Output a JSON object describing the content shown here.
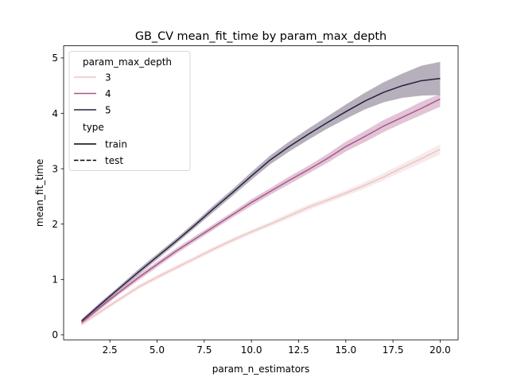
{
  "chart_data": {
    "type": "line",
    "title": "GB_CV mean_fit_time by param_max_depth",
    "xlabel": "param_n_estimators",
    "ylabel": "mean_fit_time",
    "xlim": [
      0.05,
      20.95
    ],
    "ylim": [
      -0.09,
      5.22
    ],
    "xticks": [
      2.5,
      5.0,
      7.5,
      10.0,
      12.5,
      15.0,
      17.5,
      20.0
    ],
    "xtick_labels": [
      "2.5",
      "5.0",
      "7.5",
      "10.0",
      "12.5",
      "15.0",
      "17.5",
      "20.0"
    ],
    "yticks": [
      0,
      1,
      2,
      3,
      4,
      5
    ],
    "ytick_labels": [
      "0",
      "1",
      "2",
      "3",
      "4",
      "5"
    ],
    "grid": false,
    "legend": {
      "placement": "top-left",
      "hue_title": "param_max_depth",
      "style_title": "type",
      "style_entries": [
        {
          "label": "train",
          "dash": "solid"
        },
        {
          "label": "test",
          "dash": "dashed"
        }
      ]
    },
    "x": [
      1,
      2,
      3,
      4,
      5,
      6,
      7,
      8,
      9,
      10,
      11,
      12,
      13,
      14,
      15,
      16,
      17,
      18,
      19,
      20
    ],
    "series": [
      {
        "name": "3",
        "color": "#ebc4c4",
        "values": [
          0.19,
          0.42,
          0.64,
          0.86,
          1.04,
          1.21,
          1.38,
          1.55,
          1.71,
          1.86,
          2.0,
          2.15,
          2.3,
          2.43,
          2.56,
          2.7,
          2.85,
          3.02,
          3.18,
          3.35
        ],
        "ci_lower": [
          0.16,
          0.38,
          0.6,
          0.82,
          1.0,
          1.17,
          1.34,
          1.51,
          1.67,
          1.82,
          1.96,
          2.1,
          2.25,
          2.38,
          2.51,
          2.64,
          2.79,
          2.95,
          3.1,
          3.26
        ],
        "ci_upper": [
          0.22,
          0.46,
          0.68,
          0.9,
          1.08,
          1.25,
          1.42,
          1.59,
          1.75,
          1.9,
          2.04,
          2.2,
          2.35,
          2.48,
          2.61,
          2.76,
          2.92,
          3.09,
          3.26,
          3.44
        ]
      },
      {
        "name": "4",
        "color": "#a8578a",
        "values": [
          0.22,
          0.5,
          0.77,
          1.03,
          1.27,
          1.51,
          1.73,
          1.95,
          2.17,
          2.39,
          2.59,
          2.79,
          2.98,
          3.18,
          3.4,
          3.58,
          3.77,
          3.93,
          4.09,
          4.26
        ],
        "ci_lower": [
          0.19,
          0.46,
          0.73,
          0.98,
          1.22,
          1.46,
          1.68,
          1.9,
          2.12,
          2.33,
          2.53,
          2.72,
          2.91,
          3.1,
          3.31,
          3.48,
          3.66,
          3.82,
          3.97,
          4.12
        ],
        "ci_upper": [
          0.25,
          0.54,
          0.81,
          1.08,
          1.32,
          1.56,
          1.78,
          2.0,
          2.22,
          2.45,
          2.65,
          2.86,
          3.05,
          3.26,
          3.49,
          3.68,
          3.88,
          4.04,
          4.21,
          4.35
        ]
      },
      {
        "name": "5",
        "color": "#2d1e3e",
        "values": [
          0.25,
          0.55,
          0.84,
          1.13,
          1.41,
          1.69,
          1.98,
          2.28,
          2.57,
          2.87,
          3.16,
          3.4,
          3.62,
          3.83,
          4.03,
          4.22,
          4.38,
          4.5,
          4.59,
          4.63
        ],
        "ci_lower": [
          0.22,
          0.51,
          0.8,
          1.08,
          1.36,
          1.64,
          1.93,
          2.22,
          2.51,
          2.8,
          3.08,
          3.31,
          3.52,
          3.72,
          3.9,
          4.07,
          4.2,
          4.28,
          4.32,
          4.33
        ],
        "ci_upper": [
          0.28,
          0.59,
          0.88,
          1.18,
          1.46,
          1.74,
          2.03,
          2.34,
          2.63,
          2.94,
          3.24,
          3.49,
          3.72,
          3.94,
          4.16,
          4.37,
          4.56,
          4.72,
          4.86,
          4.93
        ]
      }
    ]
  }
}
